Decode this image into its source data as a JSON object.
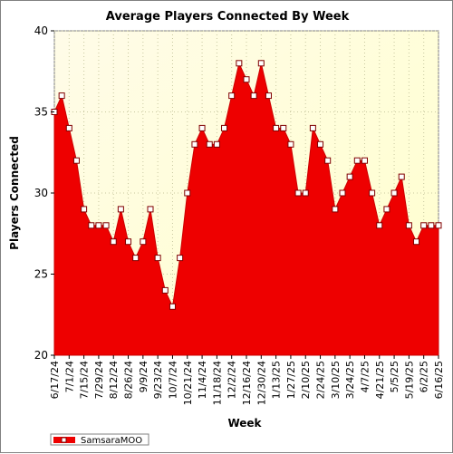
{
  "chart_data": {
    "type": "area",
    "title": "Average Players Connected By Week",
    "xlabel": "Week",
    "ylabel": "Players Connected",
    "ylim": [
      20,
      40
    ],
    "yticks": [
      20,
      25,
      30,
      35,
      40
    ],
    "grid": true,
    "legend_position": "bottom-left",
    "series_color": "#ee0000",
    "x": [
      "6/17/24",
      "6/24/24",
      "7/1/24",
      "7/8/24",
      "7/15/24",
      "7/22/24",
      "7/29/24",
      "8/5/24",
      "8/12/24",
      "8/19/24",
      "8/26/24",
      "9/2/24",
      "9/9/24",
      "9/16/24",
      "9/23/24",
      "9/30/24",
      "10/7/24",
      "10/14/24",
      "10/21/24",
      "10/28/24",
      "11/4/24",
      "11/11/24",
      "11/18/24",
      "11/25/24",
      "12/2/24",
      "12/9/24",
      "12/16/24",
      "12/23/24",
      "12/30/24",
      "1/6/25",
      "1/13/25",
      "1/20/25",
      "1/27/25",
      "2/3/25",
      "2/10/25",
      "2/17/25",
      "2/24/25",
      "3/3/25",
      "3/10/25",
      "3/17/25",
      "3/24/25",
      "3/31/25",
      "4/7/25",
      "4/14/25",
      "4/21/25",
      "4/28/25",
      "5/5/25",
      "5/12/25",
      "5/19/25",
      "5/26/25",
      "6/2/25",
      "6/9/25",
      "6/16/25"
    ],
    "xtick_labels": [
      "6/17/24",
      "7/1/24",
      "7/15/24",
      "7/29/24",
      "8/12/24",
      "8/26/24",
      "9/9/24",
      "9/23/24",
      "10/7/24",
      "10/21/24",
      "11/4/24",
      "11/18/24",
      "12/2/24",
      "12/16/24",
      "12/30/24",
      "1/13/25",
      "1/27/25",
      "2/10/25",
      "2/24/25",
      "3/10/25",
      "3/24/25",
      "4/7/25",
      "4/21/25",
      "5/5/25",
      "5/19/25",
      "6/2/25",
      "6/16/25"
    ],
    "series": [
      {
        "name": "SamsaraMOO",
        "values": [
          35,
          36,
          34,
          32,
          29,
          28,
          28,
          28,
          27,
          29,
          27,
          26,
          27,
          29,
          26,
          24,
          23,
          26,
          30,
          33,
          34,
          33,
          33,
          34,
          36,
          38,
          37,
          36,
          38,
          36,
          34,
          34,
          33,
          30,
          30,
          34,
          33,
          32,
          29,
          30,
          31,
          32,
          32,
          30,
          28,
          29,
          30,
          31,
          28,
          27,
          28,
          28,
          28
        ]
      }
    ]
  }
}
